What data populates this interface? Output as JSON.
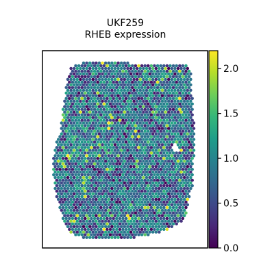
{
  "chart_data": {
    "type": "heatmap",
    "title_lines": [
      "UKF259",
      "RHEB expression"
    ],
    "xlabel": "",
    "ylabel": "",
    "colorbar": {
      "colormap": "viridis",
      "range": [
        0.0,
        2.2
      ],
      "ticks": [
        0.0,
        0.5,
        1.0,
        1.5,
        2.0
      ],
      "tick_labels": [
        "0.0",
        "0.5",
        "1.0",
        "1.5",
        "2.0"
      ]
    },
    "spots": {
      "description_of_values": "per-spot RHEB expression on spatial spot grid",
      "value_range": [
        0.0,
        2.2
      ],
      "typical_value": 1.0,
      "grid": "hexagonal"
    }
  },
  "colors": {
    "frame": "#000000",
    "viridis_stops": [
      "#440154",
      "#482878",
      "#3e4989",
      "#31688e",
      "#26828e",
      "#1f9e89",
      "#35b779",
      "#6ece58",
      "#b5de2b",
      "#fde725"
    ]
  }
}
